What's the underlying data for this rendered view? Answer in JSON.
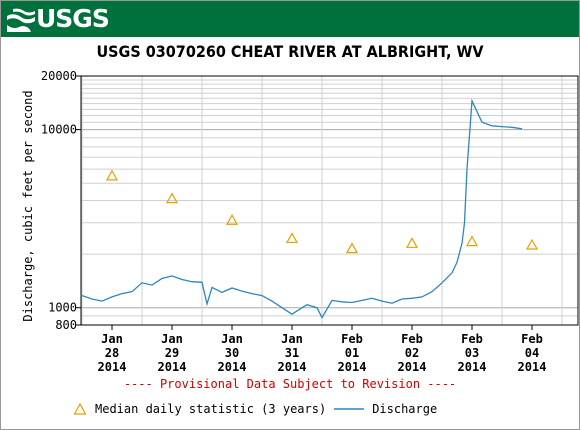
{
  "banner": {
    "logo_text": "USGS",
    "color": "#00703c"
  },
  "provisional_note": "---- Provisional Data Subject to Revision ----",
  "legend": {
    "items": [
      {
        "label": "Median daily statistic (3 years)",
        "marker": "triangle",
        "color": "#e69f00"
      },
      {
        "label": "Discharge",
        "marker": "line",
        "color": "#2e86c1"
      }
    ]
  },
  "chart_data": {
    "type": "line",
    "title": "USGS 03070260 CHEAT RIVER AT ALBRIGHT, WV",
    "ylabel": "Discharge, cubic feet per second",
    "xlabel": "",
    "y_scale": "log",
    "ylim": [
      800,
      20000
    ],
    "y_ticks": [
      {
        "value": 800,
        "label": "800"
      },
      {
        "value": 1000,
        "label": "1000"
      },
      {
        "value": 10000,
        "label": "10000"
      },
      {
        "value": 20000,
        "label": "20000"
      }
    ],
    "x_ticks": [
      {
        "label": [
          "Jan",
          "28",
          "2014"
        ]
      },
      {
        "label": [
          "Jan",
          "29",
          "2014"
        ]
      },
      {
        "label": [
          "Jan",
          "30",
          "2014"
        ]
      },
      {
        "label": [
          "Jan",
          "31",
          "2014"
        ]
      },
      {
        "label": [
          "Feb",
          "01",
          "2014"
        ]
      },
      {
        "label": [
          "Feb",
          "02",
          "2014"
        ]
      },
      {
        "label": [
          "Feb",
          "03",
          "2014"
        ]
      },
      {
        "label": [
          "Feb",
          "04",
          "2014"
        ]
      }
    ],
    "grid": true,
    "series": [
      {
        "name": "Median daily statistic (3 years)",
        "style": "triangle",
        "color": "#e69f00",
        "x": [
          "2014-01-28",
          "2014-01-29",
          "2014-01-30",
          "2014-01-31",
          "2014-02-01",
          "2014-02-02",
          "2014-02-03",
          "2014-02-04"
        ],
        "values": [
          5500,
          4100,
          3100,
          2450,
          2150,
          2300,
          2350,
          2250
        ]
      },
      {
        "name": "Discharge",
        "style": "line",
        "color": "#2e86c1",
        "x": [
          "2014-01-27 20:00",
          "2014-01-28 00:00",
          "2014-01-28 04:00",
          "2014-01-28 08:00",
          "2014-01-28 12:00",
          "2014-01-28 16:00",
          "2014-01-28 20:00",
          "2014-01-29 00:00",
          "2014-01-29 04:00",
          "2014-01-29 08:00",
          "2014-01-29 12:00",
          "2014-01-29 16:00",
          "2014-01-29 20:00",
          "2014-01-30 00:00",
          "2014-01-30 02:00",
          "2014-01-30 04:00",
          "2014-01-30 08:00",
          "2014-01-30 12:00",
          "2014-01-30 16:00",
          "2014-01-30 20:00",
          "2014-01-31 00:00",
          "2014-01-31 04:00",
          "2014-01-31 08:00",
          "2014-01-31 12:00",
          "2014-01-31 14:00",
          "2014-01-31 18:00",
          "2014-01-31 22:00",
          "2014-02-01 00:00",
          "2014-02-01 04:00",
          "2014-02-01 08:00",
          "2014-02-01 12:00",
          "2014-02-01 16:00",
          "2014-02-01 20:00",
          "2014-02-02 00:00",
          "2014-02-02 04:00",
          "2014-02-02 08:00",
          "2014-02-02 12:00",
          "2014-02-02 16:00",
          "2014-02-02 20:00",
          "2014-02-03 00:00",
          "2014-02-03 04:00",
          "2014-02-03 06:00",
          "2014-02-03 08:00",
          "2014-02-03 09:00",
          "2014-02-03 10:00",
          "2014-02-03 12:00",
          "2014-02-03 16:00",
          "2014-02-03 20:00",
          "2014-02-04 00:00",
          "2014-02-04 04:00",
          "2014-02-04 08:00"
        ],
        "values": [
          1180,
          1170,
          1120,
          1090,
          1150,
          1200,
          1230,
          1380,
          1340,
          1460,
          1510,
          1440,
          1400,
          1390,
          1050,
          1300,
          1220,
          1290,
          1240,
          1200,
          1170,
          1090,
          1000,
          920,
          960,
          1040,
          1000,
          880,
          1100,
          1080,
          1070,
          1100,
          1130,
          1090,
          1060,
          1120,
          1130,
          1150,
          1230,
          1380,
          1570,
          1800,
          2300,
          3000,
          6000,
          14500,
          11000,
          10500,
          10400,
          10300,
          10100
        ]
      }
    ]
  }
}
